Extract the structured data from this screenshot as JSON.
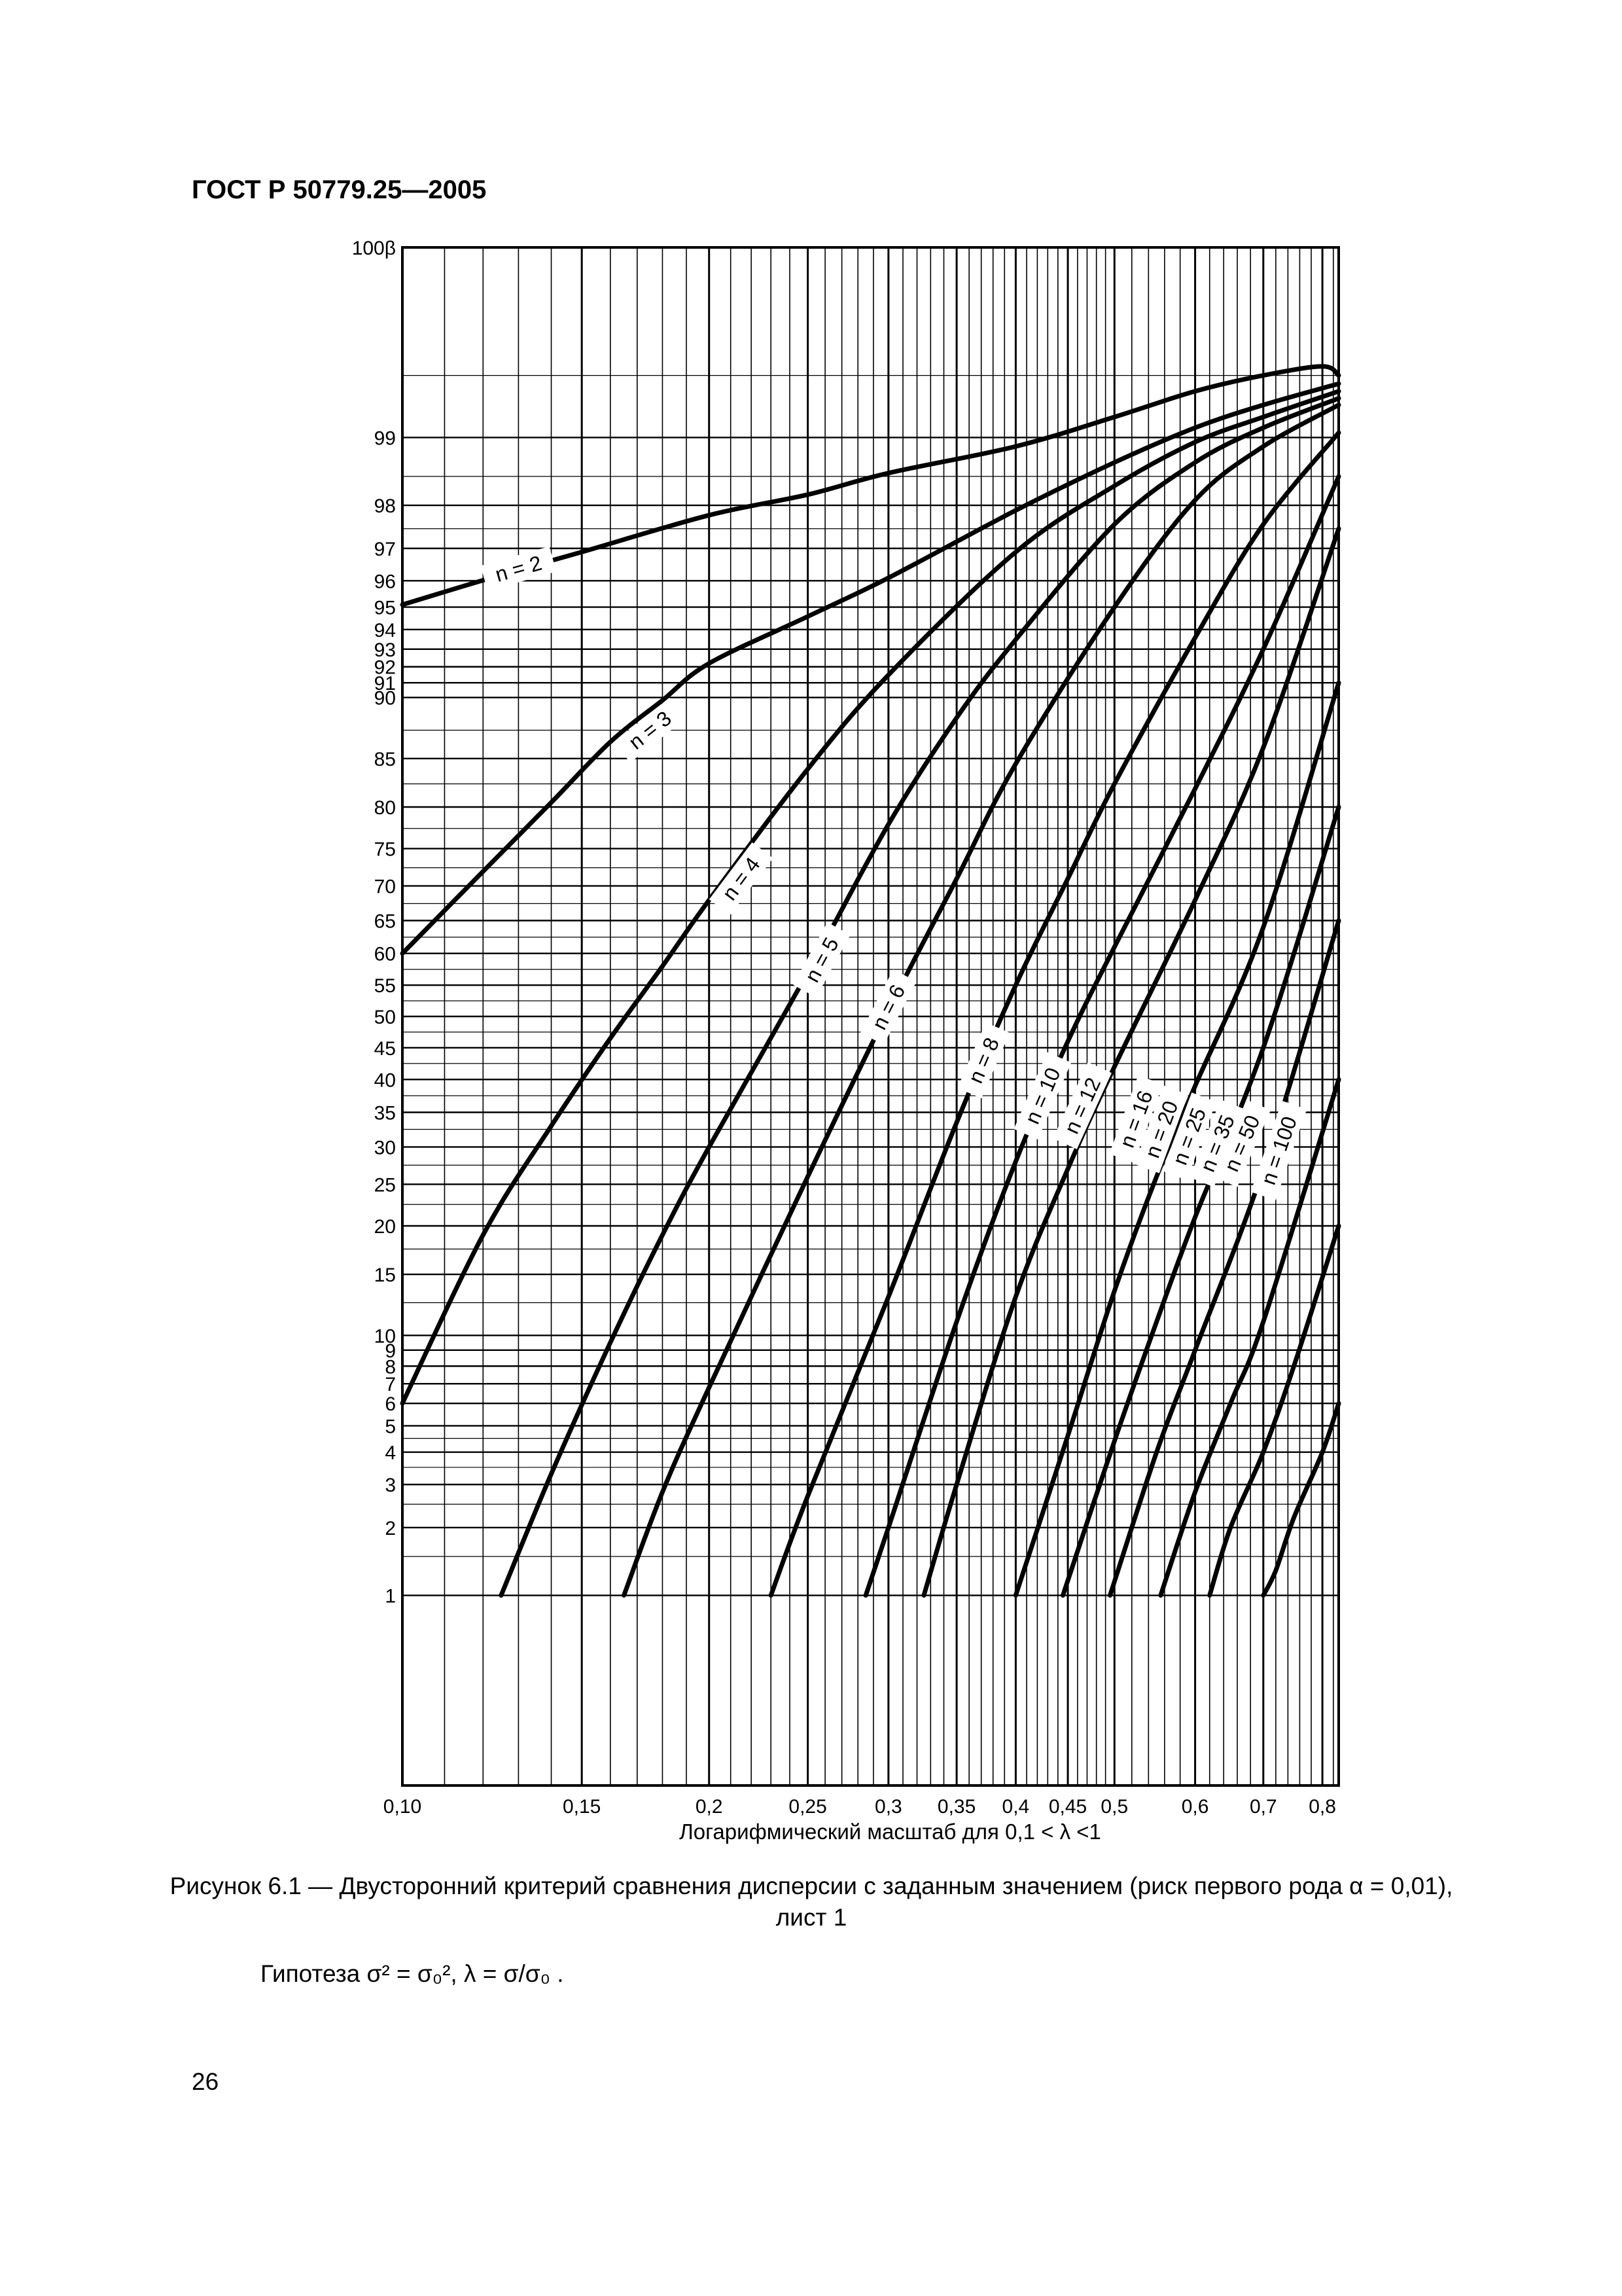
{
  "header": {
    "standard": "ГОСТ Р 50779.25—2005"
  },
  "caption": {
    "line1": "Рисунок 6.1 — Двусторонний критерий сравнения дисперсии с заданным значением (риск первого рода α = 0,01),",
    "line2": "лист 1"
  },
  "hypothesis": {
    "word": "Гипотеза",
    "formula": "σ² = σ₀², λ = σ/σ₀ ."
  },
  "page": {
    "number": "26"
  },
  "chart_data": {
    "type": "line",
    "title": "",
    "xlabel": "Логарифмический масштаб для 0,1 < λ <1",
    "ylabel": "100β",
    "x_scale": "log",
    "y_scale": "normal-probability",
    "xlim": [
      0.1,
      0.83
    ],
    "ylim": [
      0.1,
      99.9
    ],
    "grid": true,
    "x_ticks": [
      {
        "value": 0.1,
        "label": "0,10"
      },
      {
        "value": 0.15,
        "label": "0,15"
      },
      {
        "value": 0.2,
        "label": "0,2"
      },
      {
        "value": 0.25,
        "label": "0,25"
      },
      {
        "value": 0.3,
        "label": "0,3"
      },
      {
        "value": 0.35,
        "label": "0,35"
      },
      {
        "value": 0.4,
        "label": "0,4"
      },
      {
        "value": 0.45,
        "label": "0,45"
      },
      {
        "value": 0.5,
        "label": "0,5"
      },
      {
        "value": 0.6,
        "label": "0,6"
      },
      {
        "value": 0.7,
        "label": "0,7"
      },
      {
        "value": 0.8,
        "label": "0,8"
      }
    ],
    "y_ticks": [
      {
        "value": 99.9,
        "label": "100β"
      },
      {
        "value": 99,
        "label": "99"
      },
      {
        "value": 98,
        "label": "98"
      },
      {
        "value": 97,
        "label": "97"
      },
      {
        "value": 96,
        "label": "96"
      },
      {
        "value": 95,
        "label": "95"
      },
      {
        "value": 94,
        "label": "94"
      },
      {
        "value": 93,
        "label": "93"
      },
      {
        "value": 92,
        "label": "92"
      },
      {
        "value": 91,
        "label": "91"
      },
      {
        "value": 90,
        "label": "90"
      },
      {
        "value": 85,
        "label": "85"
      },
      {
        "value": 80,
        "label": "80"
      },
      {
        "value": 75,
        "label": "75"
      },
      {
        "value": 70,
        "label": "70"
      },
      {
        "value": 65,
        "label": "65"
      },
      {
        "value": 60,
        "label": "60"
      },
      {
        "value": 55,
        "label": "55"
      },
      {
        "value": 50,
        "label": "50"
      },
      {
        "value": 45,
        "label": "45"
      },
      {
        "value": 40,
        "label": "40"
      },
      {
        "value": 35,
        "label": "35"
      },
      {
        "value": 30,
        "label": "30"
      },
      {
        "value": 25,
        "label": "25"
      },
      {
        "value": 20,
        "label": "20"
      },
      {
        "value": 15,
        "label": "15"
      },
      {
        "value": 10,
        "label": "10"
      },
      {
        "value": 9,
        "label": "9"
      },
      {
        "value": 8,
        "label": "8"
      },
      {
        "value": 7,
        "label": "7"
      },
      {
        "value": 6,
        "label": "6"
      },
      {
        "value": 5,
        "label": "5"
      },
      {
        "value": 4,
        "label": "4"
      },
      {
        "value": 3,
        "label": "3"
      },
      {
        "value": 2,
        "label": "2"
      },
      {
        "value": 1,
        "label": "1"
      }
    ],
    "x_minor_grid": [
      0.11,
      0.12,
      0.13,
      0.14,
      0.16,
      0.17,
      0.18,
      0.19,
      0.21,
      0.22,
      0.23,
      0.24,
      0.26,
      0.27,
      0.28,
      0.29,
      0.31,
      0.32,
      0.33,
      0.34,
      0.36,
      0.37,
      0.38,
      0.39,
      0.41,
      0.42,
      0.43,
      0.44,
      0.46,
      0.47,
      0.48,
      0.49,
      0.52,
      0.54,
      0.56,
      0.58,
      0.62,
      0.64,
      0.66,
      0.68,
      0.72,
      0.74,
      0.76,
      0.78,
      0.82
    ],
    "y_minor_grid": [
      1.5,
      2.5,
      3.5,
      4.5,
      12.5,
      17.5,
      22.5,
      27.5,
      32.5,
      37.5,
      42.5,
      47.5,
      52.5,
      57.5,
      62.5,
      67.5,
      72.5,
      77.5,
      82.5,
      87.5,
      97.5,
      98.5,
      99.5
    ],
    "series": [
      {
        "name": "n = 2",
        "points": [
          [
            0.1,
            95.1
          ],
          [
            0.125,
            96.2
          ],
          [
            0.15,
            96.9
          ],
          [
            0.2,
            97.8
          ],
          [
            0.25,
            98.2
          ],
          [
            0.3,
            98.55
          ],
          [
            0.4,
            98.9
          ],
          [
            0.5,
            99.2
          ],
          [
            0.6,
            99.4
          ],
          [
            0.7,
            99.5
          ],
          [
            0.8,
            99.55
          ],
          [
            0.83,
            99.5
          ]
        ]
      },
      {
        "name": "n = 3",
        "points": [
          [
            0.1,
            60
          ],
          [
            0.12,
            72
          ],
          [
            0.14,
            80.5
          ],
          [
            0.16,
            86.5
          ],
          [
            0.18,
            89.8
          ],
          [
            0.2,
            92.2
          ],
          [
            0.25,
            94.6
          ],
          [
            0.3,
            96.1
          ],
          [
            0.4,
            97.9
          ],
          [
            0.5,
            98.7
          ],
          [
            0.6,
            99.1
          ],
          [
            0.7,
            99.3
          ],
          [
            0.83,
            99.45
          ]
        ]
      },
      {
        "name": "n = 4",
        "points": [
          [
            0.1,
            6
          ],
          [
            0.12,
            19
          ],
          [
            0.14,
            33
          ],
          [
            0.16,
            46.5
          ],
          [
            0.18,
            58
          ],
          [
            0.2,
            68
          ],
          [
            0.25,
            84
          ],
          [
            0.3,
            91.5
          ],
          [
            0.4,
            96.9
          ],
          [
            0.5,
            98.35
          ],
          [
            0.6,
            98.95
          ],
          [
            0.7,
            99.2
          ],
          [
            0.83,
            99.4
          ]
        ]
      },
      {
        "name": "n = 5",
        "points": [
          [
            0.125,
            1
          ],
          [
            0.14,
            3.3
          ],
          [
            0.16,
            9.5
          ],
          [
            0.18,
            19
          ],
          [
            0.2,
            30
          ],
          [
            0.25,
            57
          ],
          [
            0.3,
            78
          ],
          [
            0.35,
            88.5
          ],
          [
            0.4,
            93.5
          ],
          [
            0.5,
            97.6
          ],
          [
            0.6,
            98.7
          ],
          [
            0.7,
            99.1
          ],
          [
            0.83,
            99.35
          ]
        ]
      },
      {
        "name": "n = 6",
        "points": [
          [
            0.165,
            1
          ],
          [
            0.18,
            2.8
          ],
          [
            0.2,
            6.8
          ],
          [
            0.25,
            26
          ],
          [
            0.3,
            51
          ],
          [
            0.35,
            71
          ],
          [
            0.4,
            84.5
          ],
          [
            0.5,
            95
          ],
          [
            0.6,
            98.1
          ],
          [
            0.7,
            98.9
          ],
          [
            0.83,
            99.3
          ]
        ]
      },
      {
        "name": "n = 8",
        "points": [
          [
            0.23,
            1
          ],
          [
            0.25,
            2.7
          ],
          [
            0.3,
            13
          ],
          [
            0.35,
            33.5
          ],
          [
            0.4,
            55
          ],
          [
            0.45,
            71
          ],
          [
            0.5,
            82.5
          ],
          [
            0.6,
            93.6
          ],
          [
            0.7,
            97.6
          ],
          [
            0.83,
            99.05
          ]
        ]
      },
      {
        "name": "n = 10",
        "points": [
          [
            0.285,
            1
          ],
          [
            0.3,
            2
          ],
          [
            0.35,
            11
          ],
          [
            0.4,
            28
          ],
          [
            0.45,
            46
          ],
          [
            0.5,
            61
          ],
          [
            0.6,
            82
          ],
          [
            0.7,
            93
          ],
          [
            0.83,
            98.5
          ]
        ]
      },
      {
        "name": "n = 12",
        "points": [
          [
            0.325,
            1
          ],
          [
            0.35,
            3
          ],
          [
            0.4,
            13
          ],
          [
            0.45,
            27
          ],
          [
            0.5,
            42
          ],
          [
            0.6,
            68
          ],
          [
            0.7,
            86
          ],
          [
            0.83,
            97.5
          ]
        ]
      },
      {
        "name": "n = 16",
        "points": [
          [
            0.4,
            1
          ],
          [
            0.45,
            4.6
          ],
          [
            0.5,
            13.5
          ],
          [
            0.55,
            26
          ],
          [
            0.6,
            39
          ],
          [
            0.7,
            64
          ],
          [
            0.83,
            91
          ]
        ]
      },
      {
        "name": "n = 20",
        "points": [
          [
            0.445,
            1
          ],
          [
            0.5,
            4.4
          ],
          [
            0.55,
            11
          ],
          [
            0.6,
            21
          ],
          [
            0.7,
            45
          ],
          [
            0.83,
            80
          ]
        ]
      },
      {
        "name": "n = 25",
        "points": [
          [
            0.495,
            1
          ],
          [
            0.55,
            4
          ],
          [
            0.6,
            9
          ],
          [
            0.7,
            27
          ],
          [
            0.83,
            65
          ]
        ]
      },
      {
        "name": "n = 35",
        "points": [
          [
            0.555,
            1
          ],
          [
            0.6,
            2.8
          ],
          [
            0.65,
            6
          ],
          [
            0.7,
            11
          ],
          [
            0.83,
            40
          ]
        ]
      },
      {
        "name": "n = 50",
        "points": [
          [
            0.62,
            1
          ],
          [
            0.65,
            2
          ],
          [
            0.7,
            4
          ],
          [
            0.75,
            8
          ],
          [
            0.83,
            20
          ]
        ]
      },
      {
        "name": "n = 100",
        "points": [
          [
            0.7,
            1
          ],
          [
            0.72,
            1.3
          ],
          [
            0.75,
            2.2
          ],
          [
            0.8,
            4
          ],
          [
            0.83,
            6
          ]
        ]
      }
    ],
    "curve_labels": [
      {
        "text": "n = 2",
        "x": 0.13,
        "y": 96.4
      },
      {
        "text": "n = 3",
        "x": 0.175,
        "y": 87.5
      },
      {
        "text": "n = 4",
        "x": 0.215,
        "y": 71
      },
      {
        "text": "n = 5",
        "x": 0.258,
        "y": 59
      },
      {
        "text": "n = 6",
        "x": 0.3,
        "y": 51.5
      },
      {
        "text": "n = 8",
        "x": 0.372,
        "y": 43
      },
      {
        "text": "n = 10",
        "x": 0.425,
        "y": 37.5
      },
      {
        "text": "n = 12",
        "x": 0.465,
        "y": 36
      },
      {
        "text": "n = 16",
        "x": 0.525,
        "y": 34
      },
      {
        "text": "n = 20",
        "x": 0.556,
        "y": 32.5
      },
      {
        "text": "n = 25",
        "x": 0.592,
        "y": 31.5
      },
      {
        "text": "n = 35",
        "x": 0.631,
        "y": 30.5
      },
      {
        "text": "n = 50",
        "x": 0.667,
        "y": 30.5
      },
      {
        "text": "n = 100",
        "x": 0.725,
        "y": 29.5
      }
    ]
  }
}
